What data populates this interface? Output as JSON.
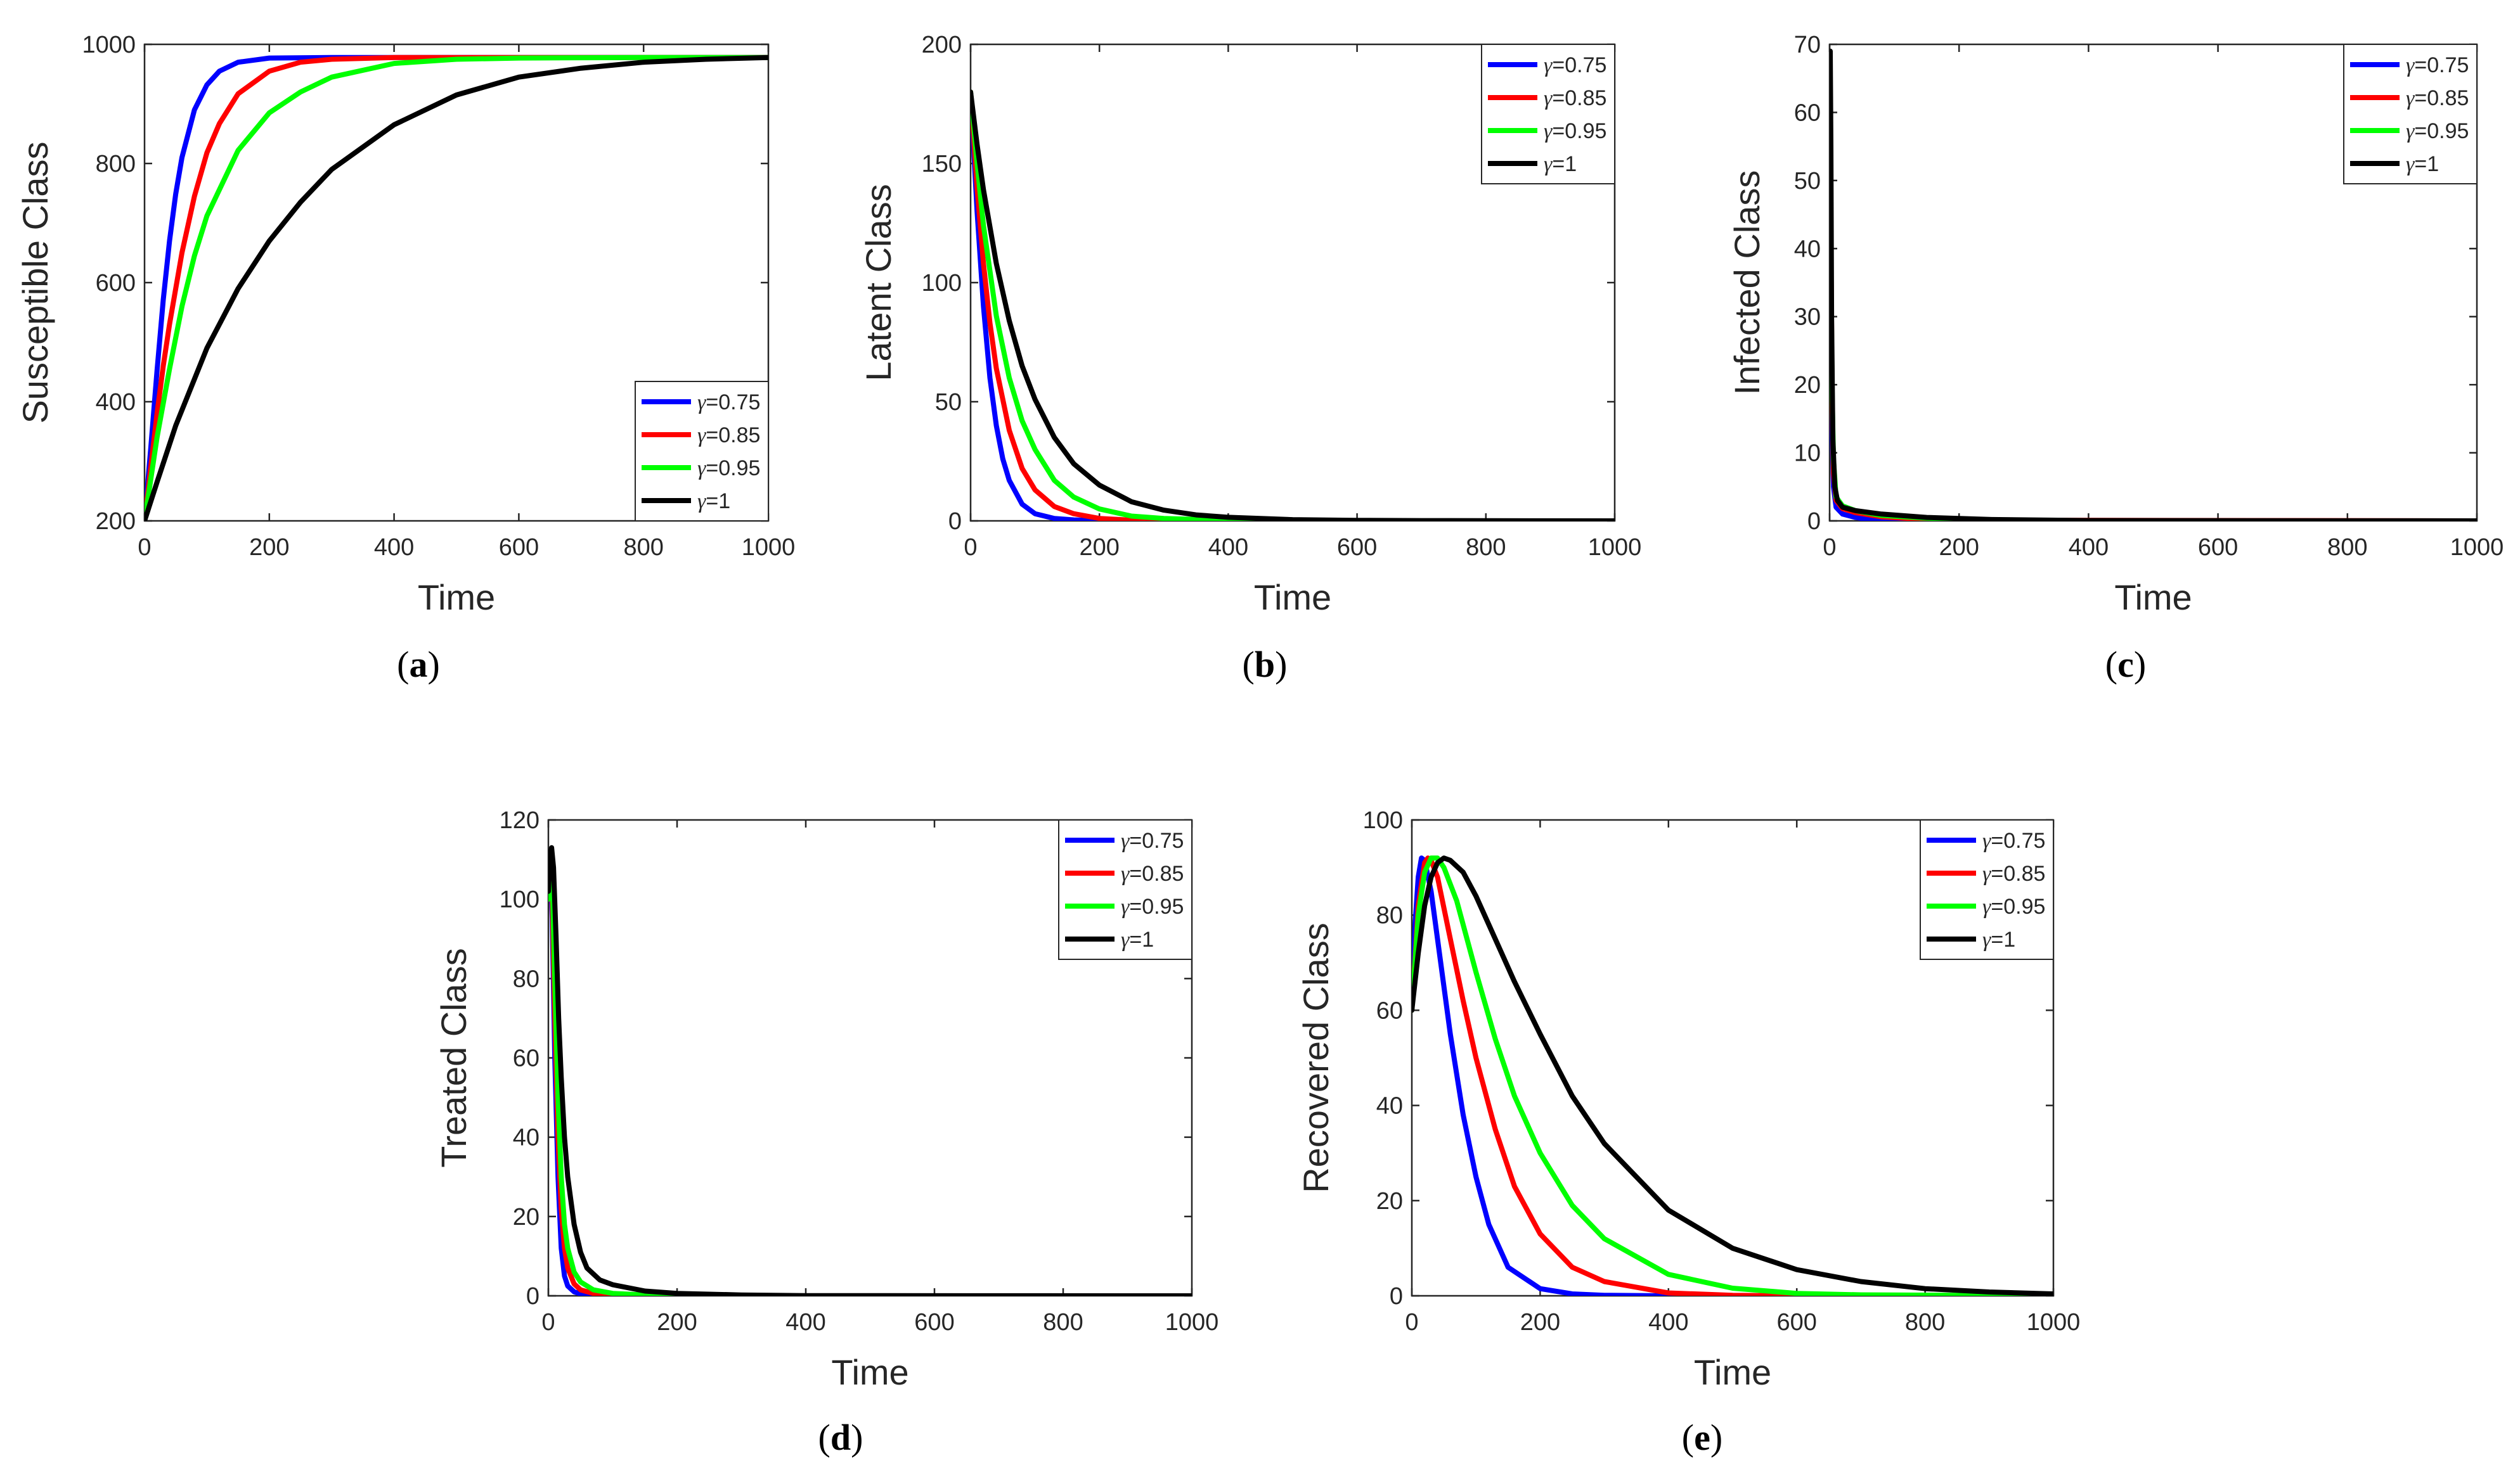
{
  "figure": {
    "series_colors": {
      "blue": "#0000ff",
      "red": "#ff0000",
      "green": "#00ff00",
      "black": "#000000"
    },
    "legend_symbol": "γ"
  },
  "chart_data": [
    {
      "id": "a",
      "panel_label": "a",
      "type": "line",
      "xlabel": "Time",
      "ylabel": "Susceptible Class",
      "xlim": [
        0,
        1000
      ],
      "ylim": [
        200,
        1000
      ],
      "xticks": [
        0,
        200,
        400,
        600,
        800,
        1000
      ],
      "yticks": [
        200,
        400,
        600,
        800,
        1000
      ],
      "legend_position": "bottom-right",
      "series": [
        {
          "name": "γ=0.75",
          "gamma": "=0.75",
          "color": "#0000ff",
          "x": [
            0,
            10,
            20,
            30,
            40,
            50,
            60,
            80,
            100,
            120,
            150,
            200,
            300,
            400,
            600,
            1000
          ],
          "y": [
            200,
            322,
            452,
            571,
            670,
            749,
            810,
            890,
            932,
            955,
            970,
            977,
            978,
            978,
            978,
            978
          ]
        },
        {
          "name": "γ=0.85",
          "gamma": "=0.85",
          "color": "#ff0000",
          "x": [
            0,
            10,
            20,
            30,
            40,
            60,
            80,
            100,
            120,
            150,
            200,
            250,
            300,
            400,
            600,
            1000
          ],
          "y": [
            200,
            290,
            380,
            460,
            530,
            650,
            745,
            818,
            867,
            917,
            955,
            970,
            975,
            978,
            978,
            978
          ]
        },
        {
          "name": "γ=0.95",
          "gamma": "=0.95",
          "color": "#00ff00",
          "x": [
            0,
            20,
            40,
            60,
            80,
            100,
            150,
            200,
            250,
            300,
            400,
            500,
            600,
            800,
            1000
          ],
          "y": [
            200,
            340,
            455,
            560,
            645,
            712,
            822,
            885,
            920,
            945,
            968,
            975,
            977,
            978,
            978
          ]
        },
        {
          "name": "γ=1",
          "gamma": "=1",
          "color": "#000000",
          "x": [
            0,
            20,
            50,
            100,
            150,
            200,
            250,
            300,
            400,
            500,
            600,
            700,
            800,
            900,
            1000
          ],
          "y": [
            200,
            265,
            360,
            490,
            590,
            670,
            735,
            790,
            865,
            915,
            945,
            960,
            970,
            975,
            978
          ]
        }
      ]
    },
    {
      "id": "b",
      "panel_label": "b",
      "type": "line",
      "xlabel": "Time",
      "ylabel": "Latent Class",
      "xlim": [
        0,
        1000
      ],
      "ylim": [
        0,
        200
      ],
      "xticks": [
        0,
        200,
        400,
        600,
        800,
        1000
      ],
      "yticks": [
        0,
        50,
        100,
        150,
        200
      ],
      "legend_position": "top-right",
      "series": [
        {
          "name": "γ=0.75",
          "gamma": "=0.75",
          "color": "#0000ff",
          "x": [
            0,
            10,
            20,
            30,
            40,
            50,
            60,
            80,
            100,
            130,
            160,
            200,
            300,
            1000
          ],
          "y": [
            180,
            130,
            90,
            60,
            40,
            26,
            17,
            7,
            3,
            1,
            0.4,
            0.1,
            0,
            0
          ]
        },
        {
          "name": "γ=0.85",
          "gamma": "=0.85",
          "color": "#ff0000",
          "x": [
            0,
            10,
            20,
            30,
            40,
            60,
            80,
            100,
            130,
            160,
            200,
            250,
            300,
            400,
            1000
          ],
          "y": [
            180,
            140,
            108,
            83,
            64,
            38,
            22,
            13,
            6,
            3,
            1,
            0.3,
            0.1,
            0,
            0
          ]
        },
        {
          "name": "γ=0.95",
          "gamma": "=0.95",
          "color": "#00ff00",
          "x": [
            0,
            10,
            20,
            40,
            60,
            80,
            100,
            130,
            160,
            200,
            250,
            300,
            400,
            500,
            1000
          ],
          "y": [
            180,
            150,
            124,
            86,
            60,
            42,
            30,
            17,
            10,
            5,
            2,
            1,
            0.2,
            0,
            0
          ]
        },
        {
          "name": "γ=1",
          "gamma": "=1",
          "color": "#000000",
          "x": [
            0,
            10,
            20,
            40,
            60,
            80,
            100,
            130,
            160,
            200,
            250,
            300,
            350,
            400,
            500,
            600,
            700,
            1000
          ],
          "y": [
            180,
            158,
            139,
            108,
            84,
            65,
            51,
            35,
            24,
            15,
            8,
            4.5,
            2.5,
            1.5,
            0.5,
            0.2,
            0.1,
            0
          ]
        }
      ]
    },
    {
      "id": "c",
      "panel_label": "c",
      "type": "line",
      "xlabel": "Time",
      "ylabel": "Infected Class",
      "xlim": [
        0,
        1000
      ],
      "ylim": [
        0,
        70
      ],
      "xticks": [
        0,
        200,
        400,
        600,
        800,
        1000
      ],
      "yticks": [
        0,
        10,
        20,
        30,
        40,
        50,
        60,
        70
      ],
      "legend_position": "top-right",
      "series": [
        {
          "name": "γ=0.75",
          "gamma": "=0.75",
          "color": "#0000ff",
          "x": [
            0,
            1,
            2,
            4,
            6,
            10,
            20,
            40,
            60,
            100,
            200,
            1000
          ],
          "y": [
            25,
            55,
            35,
            12,
            5,
            2,
            1,
            0.5,
            0.2,
            0.1,
            0,
            0
          ]
        },
        {
          "name": "γ=0.85",
          "gamma": "=0.85",
          "color": "#ff0000",
          "x": [
            0,
            1,
            2,
            4,
            6,
            10,
            20,
            40,
            80,
            150,
            250,
            1000
          ],
          "y": [
            28,
            60,
            42,
            16,
            7,
            3,
            1.8,
            1.2,
            0.6,
            0.2,
            0.1,
            0
          ]
        },
        {
          "name": "γ=0.95",
          "gamma": "=0.95",
          "color": "#00ff00",
          "x": [
            0,
            1,
            2,
            4,
            6,
            10,
            20,
            40,
            80,
            150,
            250,
            400,
            1000
          ],
          "y": [
            24,
            50,
            38,
            18,
            9,
            3.5,
            2.2,
            1.5,
            0.8,
            0.4,
            0.1,
            0,
            0
          ]
        },
        {
          "name": "γ=1",
          "gamma": "=1",
          "color": "#000000",
          "x": [
            0,
            1,
            2,
            3,
            5,
            8,
            12,
            20,
            40,
            80,
            150,
            250,
            400,
            1000
          ],
          "y": [
            50,
            69,
            55,
            30,
            12,
            5,
            3,
            2,
            1.5,
            1,
            0.5,
            0.2,
            0.05,
            0
          ]
        }
      ]
    },
    {
      "id": "d",
      "panel_label": "d",
      "type": "line",
      "xlabel": "Time",
      "ylabel": "Treated Class",
      "xlim": [
        0,
        1000
      ],
      "ylim": [
        0,
        120
      ],
      "xticks": [
        0,
        200,
        400,
        600,
        800,
        1000
      ],
      "yticks": [
        0,
        20,
        40,
        60,
        80,
        100,
        120
      ],
      "legend_position": "top-right",
      "series": [
        {
          "name": "γ=0.75",
          "gamma": "=0.75",
          "color": "#0000ff",
          "x": [
            0,
            3,
            6,
            10,
            15,
            20,
            25,
            30,
            40,
            50,
            70,
            100,
            150,
            1000
          ],
          "y": [
            100,
            110,
            95,
            60,
            30,
            12,
            5,
            2.5,
            1,
            0.5,
            0.2,
            0,
            0,
            0
          ]
        },
        {
          "name": "γ=0.85",
          "gamma": "=0.85",
          "color": "#ff0000",
          "x": [
            0,
            3,
            6,
            10,
            15,
            20,
            25,
            30,
            40,
            50,
            70,
            100,
            150,
            200,
            1000
          ],
          "y": [
            100,
            111,
            100,
            70,
            40,
            22,
            12,
            7,
            3,
            1.5,
            0.6,
            0.2,
            0.05,
            0,
            0
          ]
        },
        {
          "name": "γ=0.95",
          "gamma": "=0.95",
          "color": "#00ff00",
          "x": [
            0,
            3,
            6,
            10,
            15,
            20,
            25,
            30,
            40,
            50,
            70,
            100,
            150,
            200,
            300,
            1000
          ],
          "y": [
            100,
            112,
            105,
            80,
            50,
            30,
            18,
            12,
            6,
            3.5,
            1.5,
            0.6,
            0.2,
            0.1,
            0,
            0
          ]
        },
        {
          "name": "γ=1",
          "gamma": "=1",
          "color": "#000000",
          "x": [
            0,
            3,
            5,
            8,
            12,
            16,
            20,
            25,
            30,
            40,
            50,
            60,
            80,
            100,
            150,
            200,
            300,
            400,
            1000
          ],
          "y": [
            102,
            112,
            113,
            108,
            90,
            70,
            55,
            40,
            30,
            18,
            11,
            7,
            4,
            2.8,
            1.2,
            0.6,
            0.2,
            0.05,
            0
          ]
        }
      ]
    },
    {
      "id": "e",
      "panel_label": "e",
      "type": "line",
      "xlabel": "Time",
      "ylabel": "Recovered Class",
      "xlim": [
        0,
        1000
      ],
      "ylim": [
        0,
        100
      ],
      "xticks": [
        0,
        200,
        400,
        600,
        800,
        1000
      ],
      "yticks": [
        0,
        20,
        40,
        60,
        80,
        100
      ],
      "legend_position": "top-right",
      "series": [
        {
          "name": "γ=0.75",
          "gamma": "=0.75",
          "color": "#0000ff",
          "x": [
            0,
            5,
            10,
            15,
            20,
            30,
            40,
            60,
            80,
            100,
            120,
            150,
            200,
            250,
            300,
            400,
            1000
          ],
          "y": [
            60,
            78,
            88,
            92,
            91.5,
            85,
            75,
            55,
            38,
            25,
            15,
            6,
            1.5,
            0.4,
            0.1,
            0,
            0
          ]
        },
        {
          "name": "γ=0.85",
          "gamma": "=0.85",
          "color": "#ff0000",
          "x": [
            0,
            10,
            20,
            25,
            30,
            40,
            60,
            80,
            100,
            130,
            160,
            200,
            250,
            300,
            400,
            500,
            600,
            1000
          ],
          "y": [
            60,
            82,
            91,
            92,
            91.5,
            88,
            75,
            62,
            50,
            35,
            23,
            13,
            6,
            3,
            0.6,
            0.1,
            0,
            0
          ]
        },
        {
          "name": "γ=0.95",
          "gamma": "=0.95",
          "color": "#00ff00",
          "x": [
            0,
            10,
            20,
            30,
            40,
            50,
            70,
            100,
            130,
            160,
            200,
            250,
            300,
            400,
            500,
            600,
            700,
            1000
          ],
          "y": [
            60,
            80,
            89,
            92,
            92,
            90,
            83,
            68,
            54,
            42,
            30,
            19,
            12,
            4.5,
            1.6,
            0.5,
            0.2,
            0
          ]
        },
        {
          "name": "γ=1",
          "gamma": "=1",
          "color": "#000000",
          "x": [
            0,
            10,
            20,
            30,
            40,
            50,
            60,
            80,
            100,
            130,
            160,
            200,
            250,
            300,
            400,
            500,
            600,
            700,
            800,
            900,
            1000
          ],
          "y": [
            60,
            72,
            82,
            88,
            91,
            92,
            91.5,
            89,
            84,
            75,
            66,
            55,
            42,
            32,
            18,
            10,
            5.5,
            3,
            1.5,
            0.8,
            0.4
          ]
        }
      ]
    }
  ]
}
